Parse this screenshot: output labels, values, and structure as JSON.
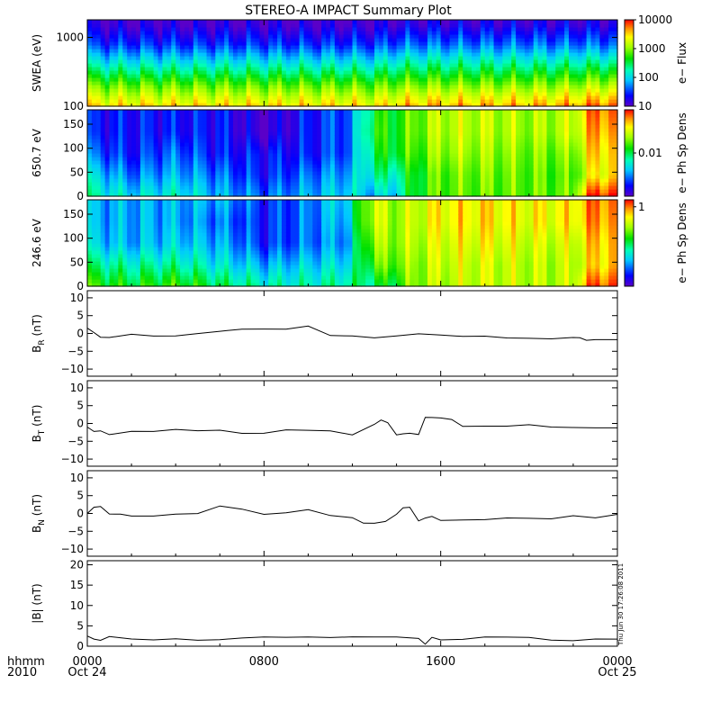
{
  "title": "STEREO-A IMPACT Summary Plot",
  "footer": {
    "hhmm": "hhmm",
    "year": "2010",
    "stamp": "Thu Jun 30 17:26:08 2011"
  },
  "colors": {
    "line": "#000000",
    "background": "#ffffff"
  },
  "chart_data": [
    {
      "type": "heatmap",
      "id": "swea",
      "ylabel": "SWEA (eV)",
      "yscale": "log",
      "ylim": [
        100,
        1800
      ],
      "yticks": [
        {
          "value": 100,
          "label": "100"
        },
        {
          "value": 1000,
          "label": "1000"
        }
      ],
      "colorbar": {
        "label": "e− Flux",
        "scale": "log",
        "range": [
          10,
          10000
        ],
        "ticks": [
          {
            "value": 10,
            "label": "10"
          },
          {
            "value": 100,
            "label": "100"
          },
          {
            "value": 1000,
            "label": "1000"
          },
          {
            "value": 10000,
            "label": "10000"
          }
        ]
      },
      "x_hours": [
        0,
        2,
        4,
        6,
        8,
        10,
        12,
        13,
        14,
        15,
        16,
        18,
        20,
        22,
        23,
        24
      ],
      "energy_levels_eV": [
        100,
        200,
        400,
        800,
        1600
      ],
      "flux": [
        [
          3000,
          800,
          150,
          30,
          12
        ],
        [
          3000,
          800,
          150,
          30,
          12
        ],
        [
          3000,
          800,
          150,
          30,
          12
        ],
        [
          3000,
          800,
          150,
          30,
          12
        ],
        [
          3000,
          800,
          150,
          30,
          12
        ],
        [
          3000,
          800,
          150,
          30,
          12
        ],
        [
          3000,
          800,
          150,
          30,
          12
        ],
        [
          2500,
          700,
          140,
          30,
          12
        ],
        [
          3500,
          900,
          200,
          40,
          14
        ],
        [
          4000,
          1000,
          220,
          45,
          15
        ],
        [
          4000,
          1000,
          220,
          45,
          15
        ],
        [
          4000,
          1000,
          220,
          45,
          15
        ],
        [
          4000,
          1000,
          220,
          45,
          15
        ],
        [
          4500,
          1100,
          230,
          45,
          15
        ],
        [
          6000,
          1300,
          250,
          45,
          15
        ],
        [
          7000,
          1500,
          260,
          45,
          15
        ]
      ]
    },
    {
      "type": "heatmap",
      "id": "pad650",
      "ylabel": "650.7 eV",
      "ylim": [
        0,
        180
      ],
      "yticks": [
        {
          "value": 0,
          "label": "0"
        },
        {
          "value": 50,
          "label": "50"
        },
        {
          "value": 100,
          "label": "100"
        },
        {
          "value": 150,
          "label": "150"
        }
      ],
      "colorbar": {
        "label": "e− Ph Sp Dens",
        "scale": "log",
        "range": [
          0.002,
          0.05
        ],
        "ticks": [
          {
            "value": 0.01,
            "label": "0.01"
          }
        ]
      },
      "x_hours": [
        0,
        2,
        4,
        6,
        8,
        10,
        12,
        13,
        14,
        15,
        16,
        18,
        20,
        22,
        23,
        24
      ],
      "angle_levels_deg": [
        0,
        45,
        90,
        135,
        180
      ],
      "density": [
        [
          0.008,
          0.006,
          0.004,
          0.003,
          0.003
        ],
        [
          0.006,
          0.004,
          0.003,
          0.003,
          0.003
        ],
        [
          0.007,
          0.005,
          0.004,
          0.003,
          0.003
        ],
        [
          0.005,
          0.004,
          0.003,
          0.003,
          0.003
        ],
        [
          0.004,
          0.003,
          0.003,
          0.002,
          0.002
        ],
        [
          0.005,
          0.004,
          0.003,
          0.003,
          0.003
        ],
        [
          0.006,
          0.005,
          0.004,
          0.004,
          0.004
        ],
        [
          0.005,
          0.008,
          0.01,
          0.012,
          0.011
        ],
        [
          0.006,
          0.008,
          0.012,
          0.012,
          0.012
        ],
        [
          0.012,
          0.012,
          0.014,
          0.016,
          0.016
        ],
        [
          0.015,
          0.015,
          0.018,
          0.02,
          0.02
        ],
        [
          0.015,
          0.016,
          0.018,
          0.02,
          0.02
        ],
        [
          0.015,
          0.015,
          0.016,
          0.018,
          0.018
        ],
        [
          0.015,
          0.014,
          0.016,
          0.02,
          0.02
        ],
        [
          0.05,
          0.025,
          0.03,
          0.035,
          0.04
        ],
        [
          0.05,
          0.03,
          0.03,
          0.035,
          0.04
        ]
      ]
    },
    {
      "type": "heatmap",
      "id": "pad246",
      "ylabel": "246.6 eV",
      "ylim": [
        0,
        180
      ],
      "yticks": [
        {
          "value": 0,
          "label": "0"
        },
        {
          "value": 50,
          "label": "50"
        },
        {
          "value": 100,
          "label": "100"
        },
        {
          "value": 150,
          "label": "150"
        }
      ],
      "colorbar": {
        "label": "e− Ph Sp Dens",
        "scale": "log",
        "range": [
          0.01,
          1.5
        ],
        "ticks": [
          {
            "value": 1,
            "label": "1"
          }
        ]
      },
      "x_hours": [
        0,
        2,
        4,
        6,
        8,
        10,
        12,
        13,
        14,
        15,
        16,
        18,
        20,
        22,
        23,
        24
      ],
      "angle_levels_deg": [
        0,
        45,
        90,
        135,
        180
      ],
      "density": [
        [
          0.2,
          0.1,
          0.05,
          0.04,
          0.04
        ],
        [
          0.15,
          0.08,
          0.04,
          0.04,
          0.04
        ],
        [
          0.2,
          0.09,
          0.05,
          0.04,
          0.04
        ],
        [
          0.12,
          0.06,
          0.04,
          0.03,
          0.04
        ],
        [
          0.08,
          0.04,
          0.02,
          0.02,
          0.02
        ],
        [
          0.08,
          0.05,
          0.03,
          0.03,
          0.03
        ],
        [
          0.1,
          0.06,
          0.04,
          0.05,
          0.06
        ],
        [
          0.1,
          0.2,
          0.3,
          0.4,
          0.4
        ],
        [
          0.15,
          0.25,
          0.3,
          0.3,
          0.3
        ],
        [
          0.3,
          0.3,
          0.35,
          0.4,
          0.4
        ],
        [
          0.35,
          0.4,
          0.45,
          0.55,
          0.55
        ],
        [
          0.4,
          0.4,
          0.5,
          0.6,
          0.6
        ],
        [
          0.35,
          0.35,
          0.4,
          0.5,
          0.5
        ],
        [
          0.35,
          0.35,
          0.4,
          0.55,
          0.55
        ],
        [
          1.2,
          0.6,
          0.7,
          0.9,
          1.0
        ],
        [
          1.3,
          0.8,
          0.8,
          0.9,
          1.0
        ]
      ]
    },
    {
      "type": "line",
      "id": "br",
      "ylabel": "B",
      "ylabel_sub": "R",
      "ylabel_unit": "(nT)",
      "ylim": [
        -12,
        12
      ],
      "yticks": [
        {
          "value": -10,
          "label": "−10"
        },
        {
          "value": -5,
          "label": "−5"
        },
        {
          "value": 0,
          "label": "0"
        },
        {
          "value": 5,
          "label": "5"
        },
        {
          "value": 10,
          "label": "10"
        }
      ],
      "x": [
        0,
        0.3,
        0.6,
        1,
        2,
        3,
        4,
        5,
        6,
        7,
        8,
        9,
        10,
        11,
        12,
        13,
        14,
        15,
        16,
        17,
        18,
        19,
        20,
        21,
        22,
        22.3,
        22.6,
        23,
        23.5,
        24
      ],
      "y": [
        1.5,
        0.5,
        -1,
        -1,
        0,
        -0.5,
        -0.5,
        0,
        0.5,
        1,
        1,
        1,
        2,
        -0.5,
        -0.5,
        -1,
        -0.5,
        0,
        -0.5,
        -1,
        -1,
        -1.5,
        -1.5,
        -1.5,
        -1,
        -1,
        -2,
        -1.5,
        -1.5,
        -1.5
      ]
    },
    {
      "type": "line",
      "id": "bt",
      "ylabel": "B",
      "ylabel_sub": "T",
      "ylabel_unit": "(nT)",
      "ylim": [
        -12,
        12
      ],
      "yticks": [
        {
          "value": -10,
          "label": "−10"
        },
        {
          "value": -5,
          "label": "−5"
        },
        {
          "value": 0,
          "label": "0"
        },
        {
          "value": 5,
          "label": "5"
        },
        {
          "value": 10,
          "label": "10"
        }
      ],
      "x": [
        0,
        0.3,
        0.6,
        1,
        2,
        3,
        4,
        5,
        6,
        7,
        8,
        9,
        10,
        11,
        12,
        13,
        13.3,
        13.6,
        14,
        14.3,
        14.6,
        15,
        15.3,
        15.6,
        16,
        16.5,
        17,
        18,
        19,
        20,
        21,
        22,
        23,
        24
      ],
      "y": [
        -1,
        -2,
        -2,
        -3,
        -2,
        -2,
        -1.5,
        -2,
        -2,
        -3,
        -3,
        -2,
        -2,
        -2,
        -3,
        0,
        1,
        0,
        -3,
        -3,
        -3,
        -3,
        1.5,
        1.5,
        1.5,
        1,
        -1,
        -1,
        -1,
        -0.5,
        -1,
        -1,
        -1,
        -1
      ]
    },
    {
      "type": "line",
      "id": "bn",
      "ylabel": "B",
      "ylabel_sub": "N",
      "ylabel_unit": "(nT)",
      "ylim": [
        -12,
        12
      ],
      "yticks": [
        {
          "value": -10,
          "label": "−10"
        },
        {
          "value": -5,
          "label": "−5"
        },
        {
          "value": 0,
          "label": "0"
        },
        {
          "value": 5,
          "label": "5"
        },
        {
          "value": 10,
          "label": "10"
        }
      ],
      "x": [
        0,
        0.3,
        0.6,
        1,
        1.5,
        2,
        3,
        4,
        5,
        6,
        7,
        8,
        9,
        10,
        11,
        12,
        12.5,
        13,
        13.5,
        14,
        14.3,
        14.6,
        15,
        15.3,
        15.6,
        16,
        17,
        18,
        19,
        20,
        21,
        22,
        23,
        24
      ],
      "y": [
        0,
        2,
        2,
        0,
        0,
        -0.5,
        -0.5,
        0,
        0,
        2,
        1,
        -0.5,
        0,
        1,
        -0.5,
        -1,
        -2.5,
        -2.5,
        -2,
        0,
        1.5,
        1.5,
        -2,
        -1.5,
        -1,
        -2,
        -2,
        -2,
        -1.5,
        -1.5,
        -1.5,
        -0.5,
        -1,
        0
      ]
    },
    {
      "type": "line",
      "id": "bmag",
      "ylabel": "|B| (nT)",
      "ylim": [
        0,
        21
      ],
      "yticks": [
        {
          "value": 0,
          "label": "0"
        },
        {
          "value": 5,
          "label": "5"
        },
        {
          "value": 10,
          "label": "10"
        },
        {
          "value": 15,
          "label": "15"
        },
        {
          "value": 20,
          "label": "20"
        }
      ],
      "x": [
        0,
        0.3,
        0.6,
        1,
        2,
        3,
        4,
        5,
        6,
        7,
        8,
        9,
        10,
        11,
        12,
        13,
        14,
        15,
        15.3,
        15.6,
        16,
        17,
        18,
        19,
        20,
        21,
        22,
        23,
        24
      ],
      "y": [
        2.5,
        2,
        1.5,
        2.5,
        2,
        1.8,
        2,
        1.5,
        1.5,
        1.8,
        2,
        2,
        2.2,
        2.2,
        2.5,
        2.5,
        2.5,
        2,
        0.3,
        2,
        1.5,
        1.5,
        2,
        2,
        2,
        1.5,
        1.5,
        2,
        2
      ]
    }
  ],
  "x_axis": {
    "ticks": [
      {
        "hour": 0,
        "label": "0000",
        "sublabel": "Oct 24"
      },
      {
        "hour": 8,
        "label": "0800",
        "sublabel": ""
      },
      {
        "hour": 16,
        "label": "1600",
        "sublabel": ""
      },
      {
        "hour": 24,
        "label": "0000",
        "sublabel": "Oct 25"
      }
    ]
  }
}
